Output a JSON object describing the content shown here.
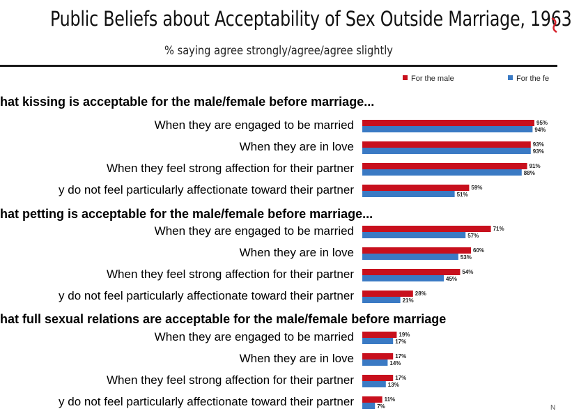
{
  "colors": {
    "male": "#c8101d",
    "female": "#3a7ac4"
  },
  "chart_data": {
    "type": "bar",
    "orientation": "horizontal",
    "title": "Public Beliefs about Acceptability of Sex Outside Marriage, 1963",
    "subtitle": "% saying agree strongly/agree/agree slightly",
    "legend": {
      "placement": "top-right",
      "entries": [
        "For the male",
        "For the fe"
      ]
    },
    "series_names": [
      "For the male",
      "For the fe"
    ],
    "xlim": [
      0,
      100
    ],
    "grid": false,
    "sections": [
      {
        "title": "hat kissing is acceptable for the male/female before marriage...",
        "rows": [
          {
            "label": "When they are engaged to be married",
            "male": 95,
            "female": 94,
            "male_label": "95%",
            "female_label": "94%"
          },
          {
            "label": "When they are in love",
            "male": 93,
            "female": 93,
            "male_label": "93%",
            "female_label": "93%"
          },
          {
            "label": "When they feel strong affection for their partner",
            "male": 91,
            "female": 88,
            "male_label": "91%",
            "female_label": "88%"
          },
          {
            "label": "y do not feel particularly affectionate toward their partner",
            "male": 59,
            "female": 51,
            "male_label": "59%",
            "female_label": "51%"
          }
        ]
      },
      {
        "title": "hat petting is acceptable for the male/female before marriage...",
        "rows": [
          {
            "label": "When they are engaged to be married",
            "male": 71,
            "female": 57,
            "male_label": "71%",
            "female_label": "57%"
          },
          {
            "label": "When they are in love",
            "male": 60,
            "female": 53,
            "male_label": "60%",
            "female_label": "53%"
          },
          {
            "label": "When they feel strong affection for their partner",
            "male": 54,
            "female": 45,
            "male_label": "54%",
            "female_label": "45%"
          },
          {
            "label": "y do not feel particularly affectionate toward their partner",
            "male": 28,
            "female": 21,
            "male_label": "28%",
            "female_label": "21%"
          }
        ]
      },
      {
        "title": "hat full sexual relations are acceptable for the male/female before marriage",
        "rows": [
          {
            "label": "When they are engaged to be married",
            "male": 19,
            "female": 17,
            "male_label": "19%",
            "female_label": "17%"
          },
          {
            "label": "When they are in love",
            "male": 17,
            "female": 14,
            "male_label": "17%",
            "female_label": "14%"
          },
          {
            "label": "When they feel strong affection for their partner",
            "male": 17,
            "female": 13,
            "male_label": "17%",
            "female_label": "13%"
          },
          {
            "label": "y do not feel particularly affectionate toward their partner",
            "male": 11,
            "female": 7,
            "male_label": "11%",
            "female_label": "7%"
          }
        ]
      }
    ]
  },
  "footer_note": "N"
}
